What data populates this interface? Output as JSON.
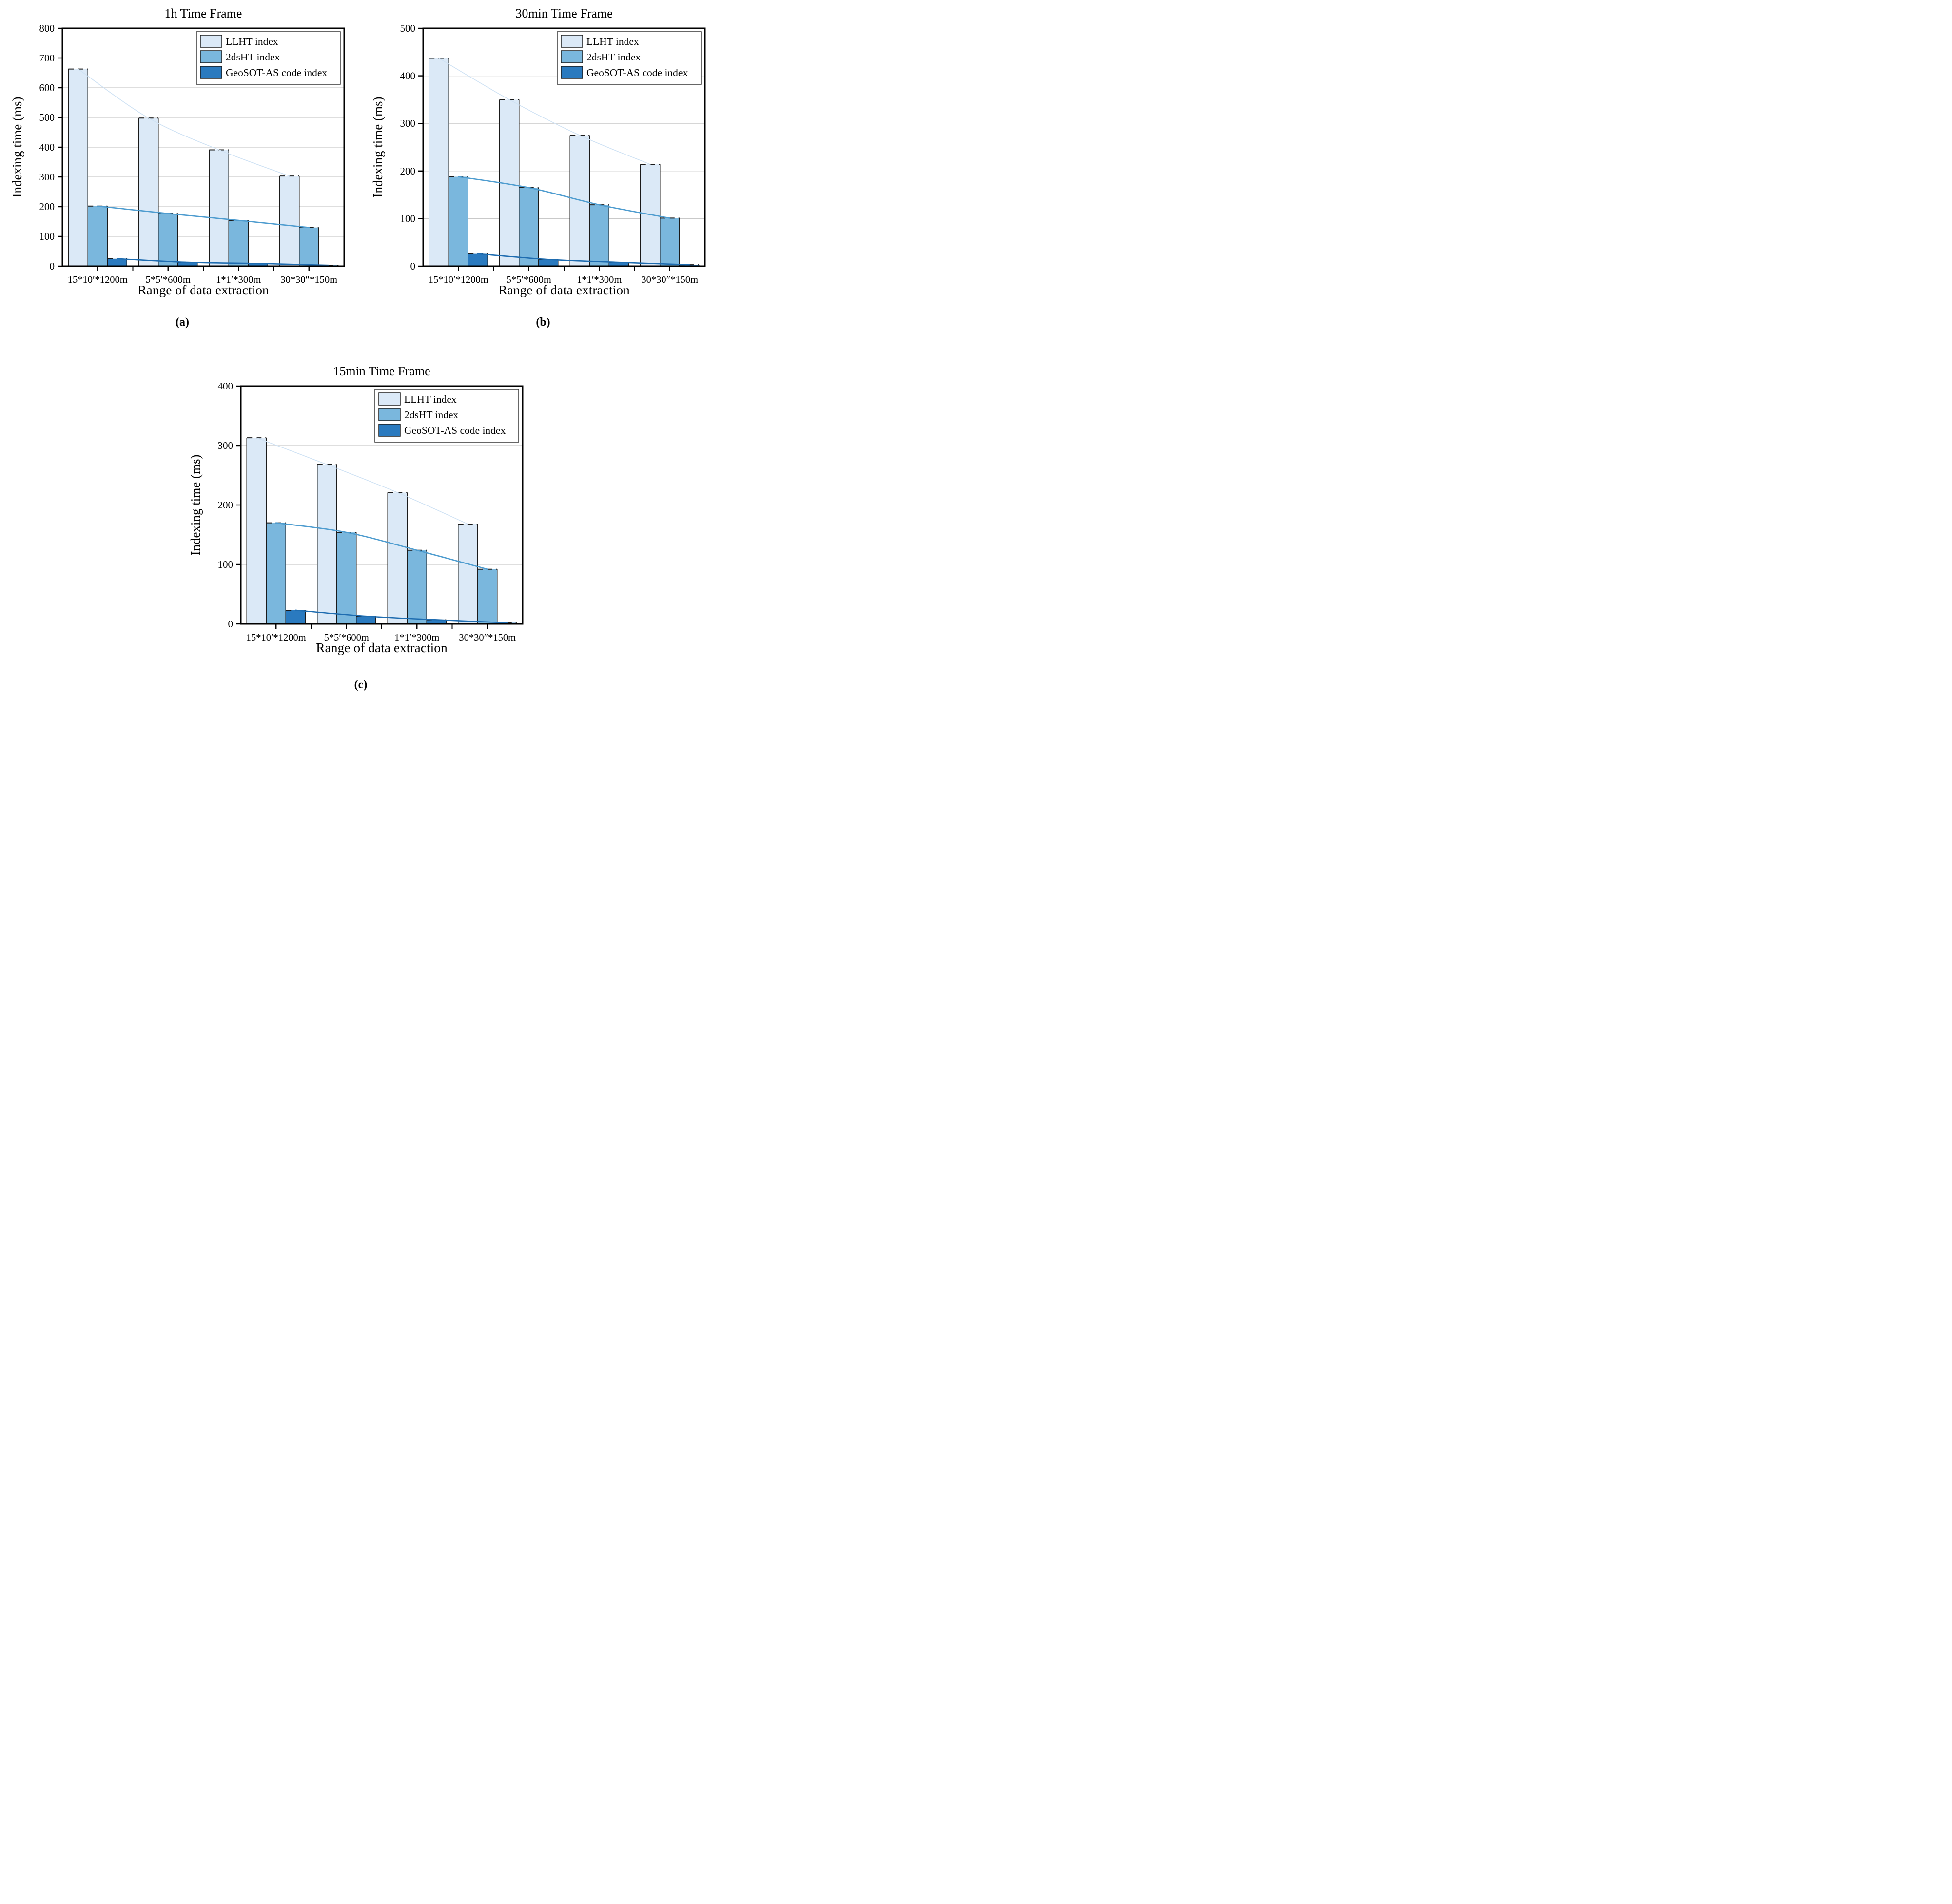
{
  "figure": {
    "background": "#ffffff",
    "captions": {
      "a": "(a)",
      "b": "(b)",
      "c": "(c)"
    }
  },
  "colors": {
    "frame": "#000000",
    "grid": "#c9c9c9",
    "bar_border": "#1a1a1a",
    "text": "#000000",
    "legend_border": "#333333",
    "llht_fill": "#dbe9f7",
    "dsht_fill": "#7ab7dd",
    "geosot_fill": "#2a7abf",
    "llht_line": "#cfe2f4",
    "dsht_line": "#4e9ccf",
    "geosot_line": "#1e6cb0"
  },
  "chart_data": [
    {
      "id": "a",
      "type": "bar",
      "title": "1h Time Frame",
      "xlabel": "Range of data extraction",
      "ylabel": "Indexing time (ms)",
      "caption": "(a)",
      "ylim": [
        0,
        800
      ],
      "yticks": [
        0,
        100,
        200,
        300,
        400,
        500,
        600,
        700,
        800
      ],
      "grid": true,
      "legend_position": "top-right",
      "categories": [
        "15*10′*1200m",
        "5*5′*600m",
        "1*1′*300m",
        "30*30″*150m"
      ],
      "series": [
        {
          "name": "LLHT index",
          "values": [
            663,
            498,
            391,
            303
          ],
          "fill": "#dbe9f7",
          "line_color": "#cfe2f4",
          "line_width": 1.6
        },
        {
          "name": "2dsHT index",
          "values": [
            202,
            177,
            154,
            130
          ],
          "fill": "#7ab7dd",
          "line_color": "#4e9ccf",
          "line_width": 2.6
        },
        {
          "name": "GeoSOT-AS code index",
          "values": [
            25,
            13,
            9,
            3
          ],
          "fill": "#2a7abf",
          "line_color": "#1e6cb0",
          "line_width": 2.6
        }
      ]
    },
    {
      "id": "b",
      "type": "bar",
      "title": "30min Time Frame",
      "xlabel": "Range of data extraction",
      "ylabel": "Indexing time (ms)",
      "caption": "(b)",
      "ylim": [
        0,
        500
      ],
      "yticks": [
        0,
        100,
        200,
        300,
        400,
        500
      ],
      "grid": true,
      "legend_position": "top-right",
      "categories": [
        "15*10′*1200m",
        "5*5′*600m",
        "1*1′*300m",
        "30*30″*150m"
      ],
      "series": [
        {
          "name": "LLHT index",
          "values": [
            437,
            350,
            275,
            214
          ],
          "fill": "#dbe9f7",
          "line_color": "#cfe2f4",
          "line_width": 1.6
        },
        {
          "name": "2dsHT index",
          "values": [
            188,
            165,
            129,
            101
          ],
          "fill": "#7ab7dd",
          "line_color": "#4e9ccf",
          "line_width": 2.6
        },
        {
          "name": "GeoSOT-AS code index",
          "values": [
            26,
            14,
            8,
            3
          ],
          "fill": "#2a7abf",
          "line_color": "#1e6cb0",
          "line_width": 2.6
        }
      ]
    },
    {
      "id": "c",
      "type": "bar",
      "title": "15min Time Frame",
      "xlabel": "Range of data extraction",
      "ylabel": "Indexing time (ms)",
      "caption": "(c)",
      "ylim": [
        0,
        400
      ],
      "yticks": [
        0,
        100,
        200,
        300,
        400
      ],
      "grid": true,
      "legend_position": "top-right",
      "categories": [
        "15*10′*1200m",
        "5*5′*600m",
        "1*1′*300m",
        "30*30″*150m"
      ],
      "series": [
        {
          "name": "LLHT index",
          "values": [
            313,
            268,
            221,
            168
          ],
          "fill": "#dbe9f7",
          "line_color": "#cfe2f4",
          "line_width": 1.6
        },
        {
          "name": "2dsHT index",
          "values": [
            170,
            154,
            124,
            92
          ],
          "fill": "#7ab7dd",
          "line_color": "#4e9ccf",
          "line_width": 2.6
        },
        {
          "name": "GeoSOT-AS code index",
          "values": [
            23,
            13,
            7,
            2
          ],
          "fill": "#2a7abf",
          "line_color": "#1e6cb0",
          "line_width": 2.6
        }
      ]
    }
  ]
}
